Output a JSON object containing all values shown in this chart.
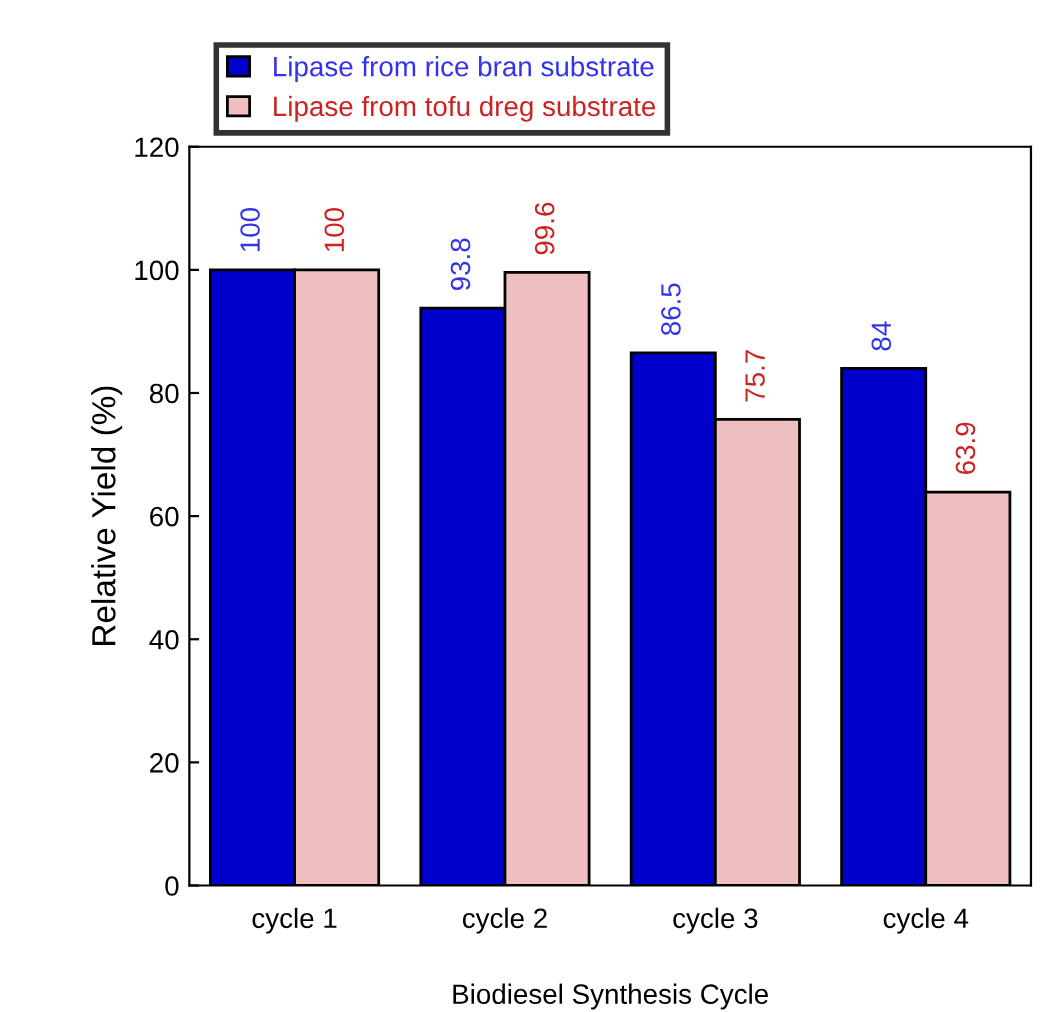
{
  "chart_data": {
    "type": "bar",
    "xlabel": "Biodiesel Synthesis Cycle",
    "ylabel": "Relative Yield (%)",
    "categories": [
      "cycle 1",
      "cycle 2",
      "cycle 3",
      "cycle 4"
    ],
    "series": [
      {
        "name": "Lipase from rice bran substrate",
        "color": "#0000cc",
        "values": [
          100,
          93.8,
          86.5,
          84
        ]
      },
      {
        "name": "Lipase from tofu dreg substrate",
        "color": "#efbfbf",
        "values": [
          100,
          99.6,
          75.7,
          63.9
        ]
      }
    ],
    "ylim": [
      0,
      120
    ],
    "yticks": [
      0,
      20,
      40,
      60,
      80,
      100,
      120
    ],
    "data_labels": true,
    "legend": "top",
    "grid": false
  }
}
